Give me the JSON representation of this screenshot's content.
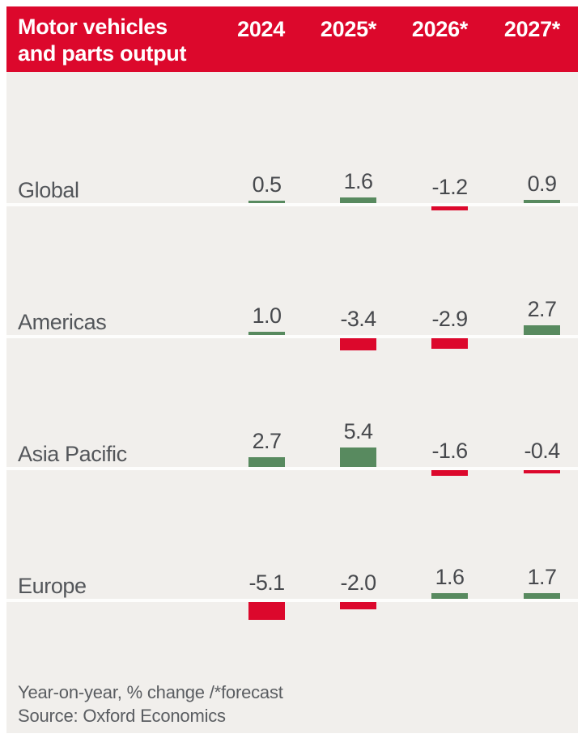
{
  "header": {
    "title_line1": "Motor vehicles",
    "title_line2": "and parts output",
    "bg_color": "#dc082c",
    "text_color": "#ffffff"
  },
  "chart_data": {
    "type": "bar",
    "title": "Motor vehicles and parts output",
    "subtitle": "Year-on-year, % change /*forecast",
    "categories": [
      "2024",
      "2025*",
      "2026*",
      "2027*"
    ],
    "series": [
      {
        "name": "Global",
        "values": [
          0.5,
          1.6,
          -1.2,
          0.9
        ]
      },
      {
        "name": "Americas",
        "values": [
          1.0,
          -3.4,
          -2.9,
          2.7
        ]
      },
      {
        "name": "Asia Pacific",
        "values": [
          2.7,
          5.4,
          -1.6,
          -0.4
        ]
      },
      {
        "name": "Europe",
        "values": [
          -5.1,
          -2.0,
          1.6,
          1.7
        ]
      }
    ],
    "value_format": "one_decimal",
    "positive_color": "#588a5f",
    "negative_color": "#dc082c",
    "background_color": "#f1efec",
    "legend_position": "none",
    "grid": false
  },
  "footer": {
    "note": "Year-on-year, % change /*forecast",
    "source": "Source: Oxford Economics"
  }
}
